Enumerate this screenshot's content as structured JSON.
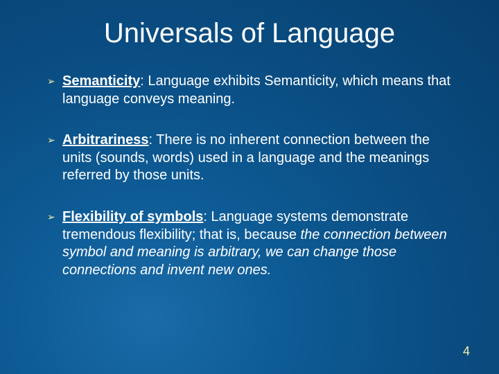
{
  "slide": {
    "title": "Universals of Language",
    "page_number": "4",
    "background_gradient": {
      "inner": "#1a6ba8",
      "mid": "#0d5a94",
      "outer": "#073f6e"
    },
    "title_fontsize": 40,
    "body_fontsize": 20,
    "bullet_color": "#f5f0a8",
    "text_color": "#ffffff",
    "page_number_color": "#f5f0a8",
    "bullets": [
      {
        "term": "Semanticity",
        "body": ":  Language exhibits Semanticity, which means that language conveys meaning."
      },
      {
        "term": "Arbitrariness",
        "body": ":  There is no inherent connection between the units (sounds, words) used in a language and the meanings referred by those units."
      },
      {
        "term": "Flexibility of symbols",
        "body_prefix": ":  Language systems demonstrate tremendous flexibility; that is, because ",
        "body_italic": "the connection between symbol and meaning is arbitrary, we can change those connections and invent new ones.",
        "body_suffix": ""
      }
    ]
  }
}
